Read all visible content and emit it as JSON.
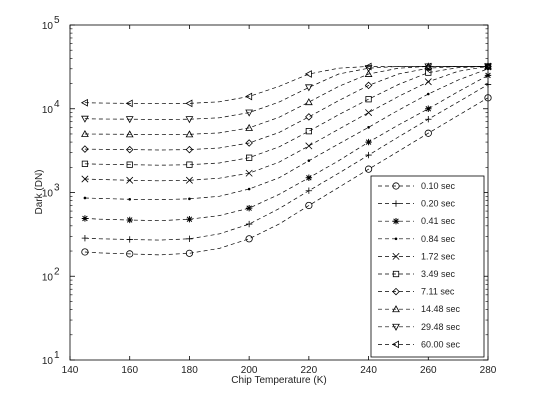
{
  "chart_data": {
    "type": "line",
    "xlabel": "Chip Temperature (K)",
    "ylabel": "Dark (DN)",
    "xlim": [
      140,
      280
    ],
    "ylim": [
      10,
      100000
    ],
    "yscale": "log",
    "x_ticks": [
      "140",
      "160",
      "180",
      "200",
      "220",
      "240",
      "260",
      "280"
    ],
    "y_ticks": [
      {
        "base": "10",
        "exp": "1"
      },
      {
        "base": "10",
        "exp": "2"
      },
      {
        "base": "10",
        "exp": "3"
      },
      {
        "base": "10",
        "exp": "4"
      },
      {
        "base": "10",
        "exp": "5"
      }
    ],
    "grid": false,
    "legend_position": "lower-right",
    "line_style": "dashed",
    "line_color": "#000000",
    "x": [
      145,
      150,
      160,
      170,
      180,
      190,
      200,
      210,
      220,
      230,
      240,
      250,
      260,
      270,
      280
    ],
    "series": [
      {
        "name": "0.10 sec",
        "marker": "circle",
        "values": [
          195,
          190,
          185,
          180,
          188,
          215,
          280,
          420,
          700,
          1150,
          1900,
          3100,
          5100,
          8300,
          13500
        ]
      },
      {
        "name": "0.20 sec",
        "marker": "plus",
        "values": [
          285,
          280,
          275,
          270,
          280,
          320,
          420,
          640,
          1050,
          1700,
          2800,
          4600,
          7500,
          12000,
          19500
        ]
      },
      {
        "name": "0.41 sec",
        "marker": "star",
        "values": [
          490,
          480,
          470,
          460,
          480,
          530,
          650,
          950,
          1500,
          2400,
          4000,
          6400,
          10000,
          16000,
          25000
        ]
      },
      {
        "name": "0.84 sec",
        "marker": "dot",
        "values": [
          860,
          850,
          830,
          820,
          840,
          900,
          1100,
          1500,
          2400,
          3800,
          6000,
          9600,
          15000,
          22000,
          30000
        ]
      },
      {
        "name": "1.72 sec",
        "marker": "x",
        "values": [
          1450,
          1430,
          1400,
          1380,
          1400,
          1480,
          1700,
          2300,
          3600,
          5700,
          9000,
          14000,
          21000,
          28000,
          32000
        ]
      },
      {
        "name": "3.49 sec",
        "marker": "square",
        "values": [
          2200,
          2180,
          2150,
          2120,
          2150,
          2250,
          2600,
          3500,
          5400,
          8500,
          13000,
          19500,
          27000,
          31000,
          32000
        ]
      },
      {
        "name": "7.11 sec",
        "marker": "diamond",
        "values": [
          3300,
          3280,
          3250,
          3220,
          3250,
          3400,
          3900,
          5200,
          8000,
          12500,
          19000,
          26000,
          30500,
          32000,
          32000
        ]
      },
      {
        "name": "14.48 sec",
        "marker": "triangle-up",
        "values": [
          5000,
          4980,
          4950,
          4900,
          4950,
          5150,
          5900,
          7900,
          12000,
          18500,
          26000,
          30500,
          32000,
          32000,
          32000
        ]
      },
      {
        "name": "29.48 sec",
        "marker": "triangle-down",
        "values": [
          7600,
          7550,
          7500,
          7450,
          7500,
          7800,
          9000,
          12000,
          18000,
          26000,
          30500,
          32000,
          32000,
          32000,
          32000
        ]
      },
      {
        "name": "60.00 sec",
        "marker": "triangle-left",
        "values": [
          11800,
          11700,
          11600,
          11500,
          11600,
          12100,
          14000,
          18500,
          26000,
          30500,
          32000,
          32000,
          32000,
          32000,
          32000
        ]
      }
    ]
  }
}
